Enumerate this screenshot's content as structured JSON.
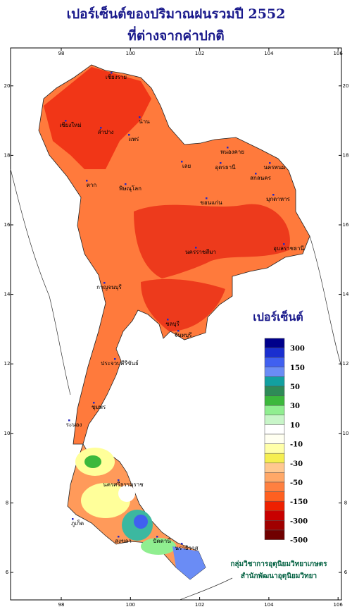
{
  "title": {
    "line1": "เปอร์เซ็นต์ของปริมาณฝนรวมปี 2552",
    "line2": "ที่ต่างจากค่าปกติ"
  },
  "map": {
    "lon_ticks": [
      "98",
      "100",
      "102",
      "104",
      "106"
    ],
    "lat_ticks": [
      "6",
      "8",
      "10",
      "12",
      "14",
      "16",
      "18",
      "20"
    ],
    "places": [
      "เชียงราย",
      "เชียงใหม่",
      "ลำปาง",
      "น่าน",
      "แพร่",
      "ตาก",
      "พิษณุโลก",
      "เลย",
      "หนองคาย",
      "อุดรธานี",
      "นครพนม",
      "สกลนคร",
      "มุกดาหาร",
      "ขอนแก่น",
      "นครราชสีมา",
      "อุบลราชธานี",
      "กาญจนบุรี",
      "ชลบุรี",
      "จันทบุรี",
      "ประจวบคีรีขันธ์",
      "ชุมพร",
      "ระนอง",
      "ภูเก็ต",
      "นครศรีธรรมราช",
      "สงขลา",
      "ปัตตานี",
      "นราธิวาส"
    ]
  },
  "legend": {
    "title": "เปอร์เซ็นต์",
    "colors": [
      "#00008b",
      "#1a2fd0",
      "#4060f0",
      "#6a8cf5",
      "#12a0a0",
      "#2e8b57",
      "#3cb83c",
      "#90ee90",
      "#c8f5c8",
      "#ffffff",
      "#fffff0",
      "#ffffa8",
      "#f5ee50",
      "#ffc890",
      "#ffa868",
      "#ff8040",
      "#ff6020",
      "#ee2000",
      "#c80000",
      "#a00000",
      "#700000"
    ],
    "labels": [
      "300",
      "150",
      "50",
      "30",
      "10",
      "-10",
      "-30",
      "-50",
      "-150",
      "-300",
      "-500"
    ]
  },
  "credits": {
    "line1": "กลุ่มวิชาการอุตุนิยมวิทยาเกษตร",
    "line2": "สำนักพัฒนาอุตุนิยมวิทยา"
  }
}
